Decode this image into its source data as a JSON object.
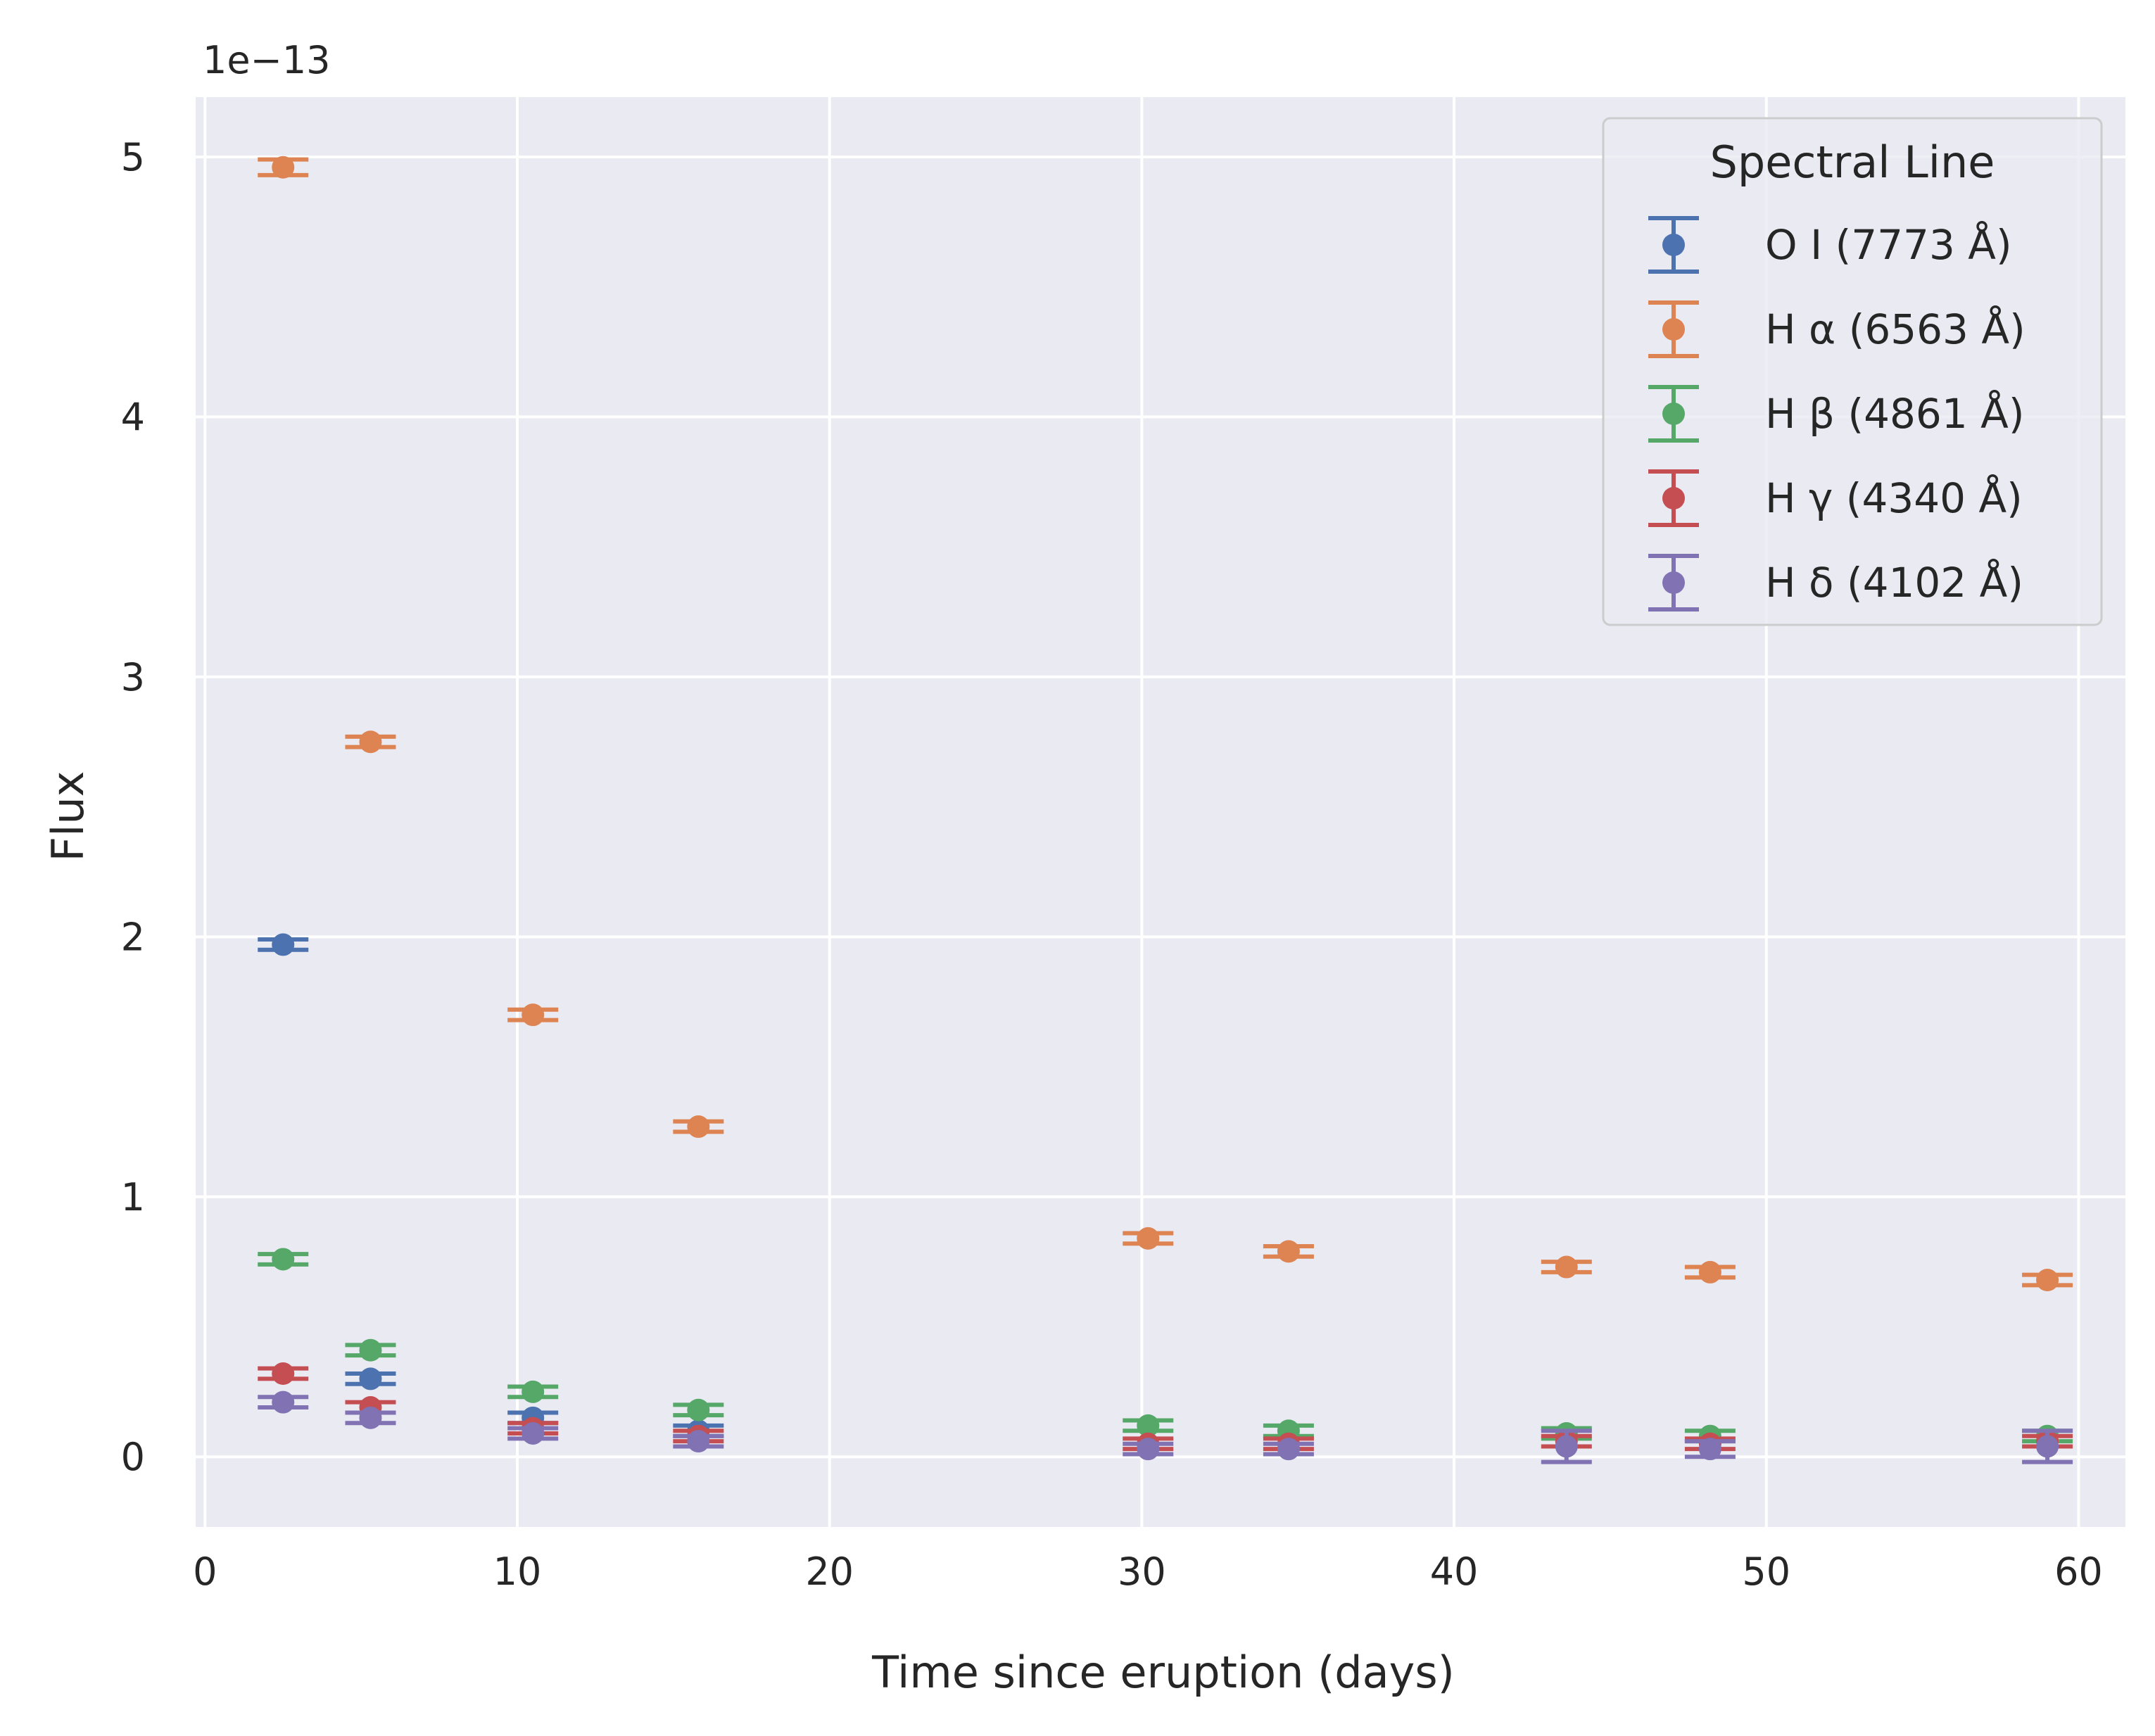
{
  "chart_data": {
    "type": "scatter",
    "xlabel": "Time since eruption (days)",
    "ylabel": "Flux",
    "offset_label": "1e−13",
    "xlim": [
      -0.3,
      61.5
    ],
    "ylim": [
      -0.27,
      5.23
    ],
    "xticks": [
      0,
      10,
      20,
      30,
      40,
      50,
      60
    ],
    "yticks": [
      0,
      1,
      2,
      3,
      4,
      5
    ],
    "grid": true,
    "legend": {
      "title": "Spectral Line",
      "position": "top-right"
    },
    "x": [
      2.5,
      5.3,
      10.5,
      15.8,
      30.2,
      34.7,
      43.6,
      48.2,
      59.0
    ],
    "series": [
      {
        "name": "O I (7773 Å)",
        "color": "#4c72b0",
        "values": [
          1.97,
          0.3,
          0.15,
          0.1,
          null,
          null,
          null,
          null,
          null
        ],
        "errors": [
          0.02,
          0.02,
          0.02,
          0.02,
          null,
          null,
          null,
          null,
          null
        ]
      },
      {
        "name": "H α (6563 Å)",
        "color": "#dd8452",
        "values": [
          4.96,
          2.75,
          1.7,
          1.27,
          0.84,
          0.79,
          0.73,
          0.71,
          0.68
        ],
        "errors": [
          0.03,
          0.02,
          0.02,
          0.02,
          0.02,
          0.02,
          0.02,
          0.02,
          0.02
        ]
      },
      {
        "name": "H β (4861 Å)",
        "color": "#55a868",
        "values": [
          0.76,
          0.41,
          0.25,
          0.18,
          0.12,
          0.1,
          0.09,
          0.08,
          0.08
        ],
        "errors": [
          0.02,
          0.02,
          0.02,
          0.02,
          0.02,
          0.02,
          0.02,
          0.02,
          0.02
        ]
      },
      {
        "name": "H γ (4340 Å)",
        "color": "#c44e52",
        "values": [
          0.32,
          0.19,
          0.11,
          0.08,
          0.05,
          0.05,
          0.06,
          0.05,
          0.06
        ],
        "errors": [
          0.02,
          0.02,
          0.02,
          0.02,
          0.02,
          0.02,
          0.02,
          0.02,
          0.02
        ]
      },
      {
        "name": "H δ (4102 Å)",
        "color": "#8172b3",
        "values": [
          0.21,
          0.15,
          0.09,
          0.06,
          0.03,
          0.03,
          0.04,
          0.03,
          0.04
        ],
        "errors": [
          0.02,
          0.02,
          0.02,
          0.02,
          0.02,
          0.02,
          0.06,
          0.03,
          0.06
        ]
      }
    ]
  }
}
